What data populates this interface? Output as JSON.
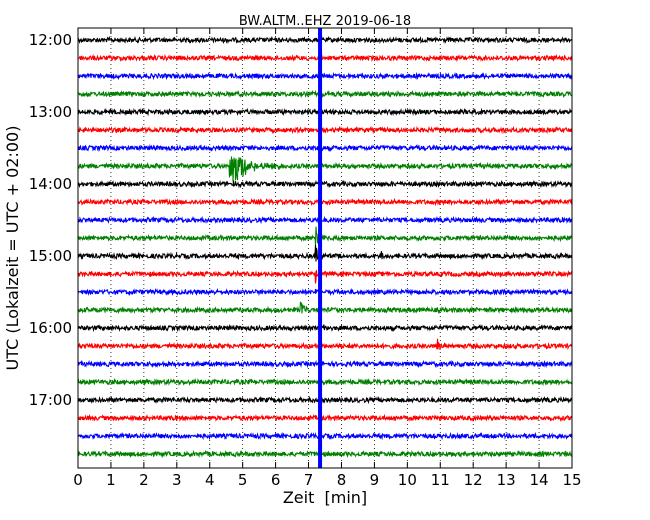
{
  "chart_data": {
    "type": "line",
    "title": "BW.ALTM..EHZ 2019-06-18",
    "xlabel": "Zeit  [min]",
    "ylabel": "UTC (Lokalzeit = UTC + 02:00)",
    "xlim": [
      0,
      15
    ],
    "x_ticks": [
      "0",
      "1",
      "2",
      "3",
      "4",
      "5",
      "6",
      "7",
      "8",
      "9",
      "10",
      "11",
      "12",
      "13",
      "14",
      "15"
    ],
    "y_tick_labels": [
      "12:00",
      "13:00",
      "14:00",
      "15:00",
      "16:00",
      "17:00"
    ],
    "grid": "dotted vertical lines at each minute",
    "trace_interval_min": 15,
    "trace_start": "12:00",
    "trace_count": 24,
    "trace_colors": [
      "#000000",
      "#ff0000",
      "#0000ff",
      "#008000"
    ],
    "events": [
      {
        "trace": 7,
        "start_min": 4.6,
        "end_min": 6.2,
        "amplitude": 1.9,
        "decay": 1.0
      },
      {
        "trace": 8,
        "start_min": 4.65,
        "end_min": 5.0,
        "amplitude": 0.3,
        "decay": 2.0
      },
      {
        "trace": 11,
        "start_min": 7.2,
        "end_min": 8.3,
        "amplitude": 2.1,
        "decay": 0.25
      },
      {
        "trace": 12,
        "start_min": 7.2,
        "end_min": 8.0,
        "amplitude": 2.1,
        "decay": 0.2
      },
      {
        "trace": 13,
        "start_min": 7.2,
        "end_min": 8.0,
        "amplitude": 1.6,
        "decay": 0.1
      },
      {
        "trace": 14,
        "start_min": 7.2,
        "end_min": 7.9,
        "amplitude": 1.4,
        "decay": 0.08
      },
      {
        "trace": 15,
        "start_min": 7.2,
        "end_min": 7.8,
        "amplitude": 1.0,
        "decay": 0.05
      },
      {
        "trace": 16,
        "start_min": 7.2,
        "end_min": 7.7,
        "amplitude": 0.6,
        "decay": 0.05
      },
      {
        "trace": 12,
        "start_min": 9.2,
        "end_min": 9.35,
        "amplitude": 0.8,
        "decay": 1.0
      },
      {
        "trace": 15,
        "start_min": 6.75,
        "end_min": 7.0,
        "amplitude": 1.1,
        "decay": 1.0
      },
      {
        "trace": 17,
        "start_min": 10.9,
        "end_min": 11.5,
        "amplitude": 0.8,
        "decay": 0.5
      },
      {
        "trace": 4,
        "start_min": 0.9,
        "end_min": 1.1,
        "amplitude": 0.6,
        "decay": 1.0
      }
    ],
    "vertical_spike": {
      "x_min": 7.35,
      "color": "#0000ff"
    }
  }
}
